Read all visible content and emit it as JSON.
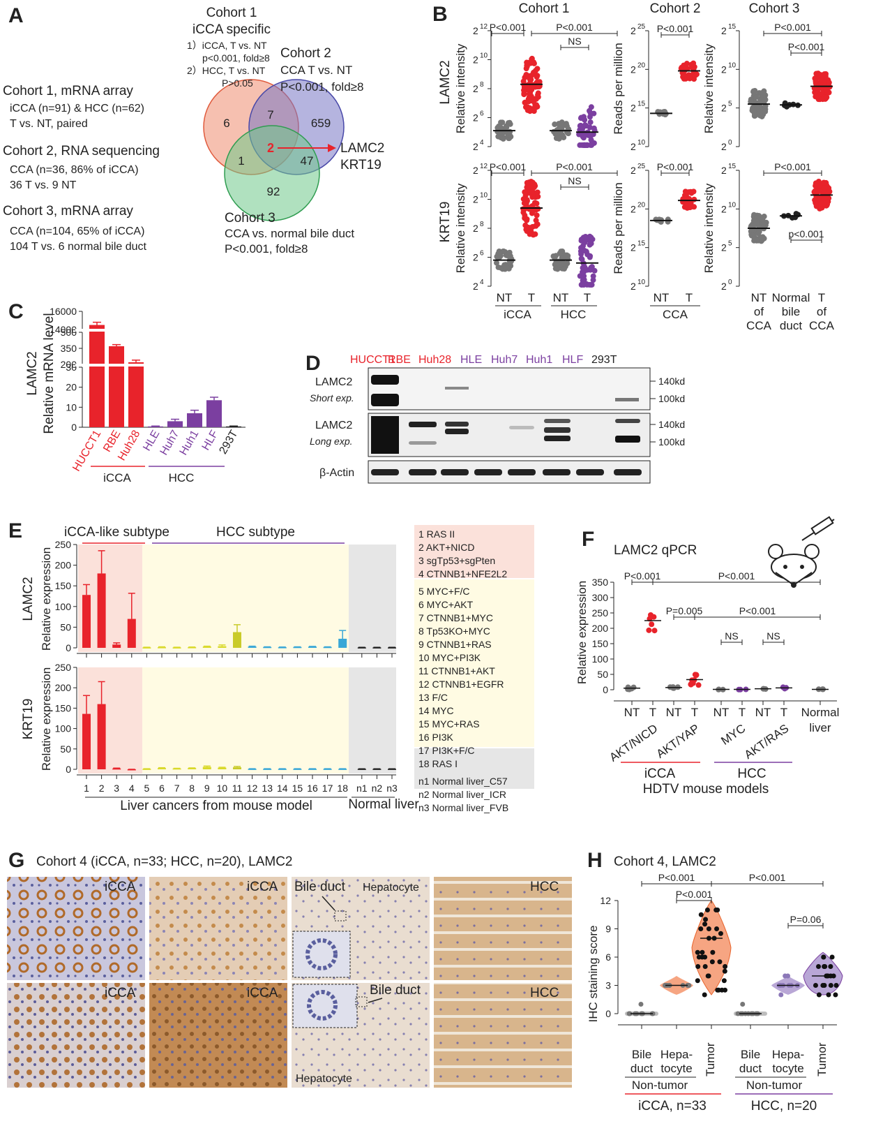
{
  "panels": {
    "A": "A",
    "B": "B",
    "C": "C",
    "D": "D",
    "E": "E",
    "F": "F",
    "G": "G",
    "H": "H"
  },
  "colors": {
    "red": "#e8232b",
    "purple": "#7b3fa0",
    "gray": "#777777",
    "black": "#222222",
    "yellow_bg": "#fffbe3",
    "pink_bg": "#fbe1da",
    "gray_bg": "#e6e6e6",
    "cyan": "#39a7d7",
    "olive": "#c9cb2a"
  },
  "panelA": {
    "c1_title": "Cohort 1, mRNA array",
    "c1_l1": "iCCA (n=91) & HCC (n=62)",
    "c1_l2": "T vs. NT, paired",
    "c2_title": "Cohort 2, RNA sequencing",
    "c2_l1": "CCA (n=36, 86% of iCCA)",
    "c2_l2": "36 T vs. 9 NT",
    "c3_title": "Cohort 3, mRNA array",
    "c3_l1": "CCA (n=104, 65% of iCCA)",
    "c3_l2": "104 T vs. 6 normal bile duct",
    "v1_t1": "Cohort 1",
    "v1_t2": "iCCA specific",
    "v1_l1": "1）iCCA, T vs. NT",
    "v1_l2": "p<0.001, fold≥8",
    "v1_l3": "2）HCC, T vs. NT",
    "v1_l4": "P>0.05",
    "v2_t1": "Cohort 2",
    "v2_l1": "CCA T vs. NT",
    "v2_l2": "P<0.001, fold≥8",
    "v3_t1": "Cohort 3",
    "v3_l1": "CCA vs. normal bile duct",
    "v3_l2": "P<0.001, fold≥8",
    "n_only1": "6",
    "n_12": "7",
    "n_only2": "659",
    "n_all": "2",
    "n_13": "1",
    "n_23": "47",
    "n_only3": "92",
    "genes1": "LAMC2",
    "genes2": "KRT19"
  },
  "panelB": {
    "col1": "Cohort 1",
    "col2": "Cohort 2",
    "col3": "Cohort 3",
    "row1": "LAMC2",
    "row2": "KRT19",
    "ylab_rel": "Relative intensity",
    "ylab_rpm": "Reads per million",
    "base": "2",
    "c1_ticks": [
      "4",
      "6",
      "8",
      "10",
      "12"
    ],
    "c2_ticks": [
      "10",
      "15",
      "20",
      "25"
    ],
    "c3_ticks": [
      "0",
      "5",
      "10",
      "15"
    ],
    "p001": "P<0.001",
    "p001_lower": "p<0.001",
    "ns": "NS",
    "x_nt": "NT",
    "x_t": "T",
    "x_icca": "iCCA",
    "x_hcc": "HCC",
    "x_cca": "CCA",
    "x3_a1": "NT",
    "x3_a2": "of",
    "x3_a3": "CCA",
    "x3_b1": "Normal",
    "x3_b2": "bile",
    "x3_b3": "duct",
    "x3_c1": "T",
    "x3_c2": "of",
    "x3_c3": "CCA"
  },
  "panelC": {
    "ylabel1": "LAMC2",
    "ylabel2": "Relative mRNA level",
    "ticks_top": [
      "14000",
      "16000"
    ],
    "ticks_mid": [
      "200",
      "350",
      "500"
    ],
    "ticks_low": [
      "0",
      "10",
      "20",
      "30"
    ],
    "group1": "iCCA",
    "group2": "HCC"
  },
  "panelD": {
    "lanes": [
      "HUCCT1",
      "RBE",
      "Huh28",
      "HLE",
      "Huh7",
      "Huh1",
      "HLF",
      "293T"
    ],
    "row1_a": "LAMC2",
    "row1_b": "Short exp.",
    "row2_a": "LAMC2",
    "row2_b": "Long exp.",
    "row3": "β-Actin",
    "m140": "140kd",
    "m100": "100kd"
  },
  "panelE": {
    "sub1": "iCCA-like subtype",
    "sub2": "HCC subtype",
    "g1": "LAMC2",
    "g2": "KRT19",
    "ylab": "Relative expression",
    "ticks": [
      "0",
      "50",
      "100",
      "150",
      "200",
      "250"
    ],
    "x_labels": [
      "1",
      "2",
      "3",
      "4",
      "5",
      "6",
      "7",
      "8",
      "9",
      "10",
      "11",
      "12",
      "13",
      "14",
      "15",
      "16",
      "17",
      "18",
      "n1",
      "n2",
      "n3"
    ],
    "x_caption1": "Liver cancers from mouse model",
    "x_caption2": "Normal liver",
    "legend": [
      "1   RAS II",
      "2   AKT+NICD",
      "3   sgTp53+sgPten",
      "4   CTNNB1+NFE2L2",
      "5   MYC+F/C",
      "6   MYC+AKT",
      "7   CTNNB1+MYC",
      "8   Tp53KO+MYC",
      "9   CTNNB1+RAS",
      "10 MYC+PI3K",
      "11 CTNNB1+AKT",
      "12 CTNNB1+EGFR",
      "13 F/C",
      "14 MYC",
      "15 MYC+RAS",
      "16 PI3K",
      "17 PI3K+F/C",
      "18 RAS I",
      "n1 Normal liver_C57",
      "n2 Normal liver_ICR",
      "n3 Normal liver_FVB"
    ]
  },
  "panelF": {
    "title": "LAMC2 qPCR",
    "ylab": "Relative expression",
    "ticks": [
      "0",
      "50",
      "100",
      "150",
      "200",
      "250",
      "300",
      "350"
    ],
    "p1": "P<0.001",
    "p2": "P<0.001",
    "p3": "P=0.005",
    "p4": "P<0.001",
    "ns": "NS",
    "x_nt": "NT",
    "x_t": "T",
    "x_normal1": "Normal",
    "x_normal2": "liver",
    "models": [
      "AKT/NICD",
      "AKT/YAP",
      "MYC",
      "AKT/RAS"
    ],
    "g1": "iCCA",
    "g2": "HCC",
    "caption": "HDTV mouse models"
  },
  "panelG": {
    "title": "Cohort 4 (iCCA, n=33; HCC, n=20), LAMC2",
    "l_icca": "iCCA",
    "l_hcc": "HCC",
    "l_bile": "Bile duct",
    "l_hep": "Hepatocyte"
  },
  "panelH": {
    "title": "Cohort 4, LAMC2",
    "ylab": "IHC staining score",
    "ticks": [
      "0",
      "3",
      "6",
      "9",
      "12"
    ],
    "p1": "P<0.001",
    "p2": "P<0.001",
    "p3": "P<0.001",
    "p4": "P=0.06",
    "x1a": "Bile",
    "x1b": "duct",
    "x2a": "Hepa-",
    "x2b": "tocyte",
    "x3": "Tumor",
    "nontumor": "Non-tumor",
    "g1": "iCCA, n=33",
    "g2": "HCC, n=20"
  },
  "chart_data": [
    {
      "type": "scatter",
      "panel": "B-Cohort1-LAMC2",
      "categories": [
        "iCCA NT",
        "iCCA T",
        "HCC NT",
        "HCC T"
      ],
      "median_log2": [
        5.1,
        8.3,
        5.1,
        5.0
      ],
      "ylim_log2": [
        4,
        12
      ]
    },
    {
      "type": "scatter",
      "panel": "B-Cohort2-LAMC2",
      "categories": [
        "CCA NT",
        "CCA T"
      ],
      "median_log2": [
        14.3,
        19.8
      ],
      "ylim_log2": [
        10,
        25
      ]
    },
    {
      "type": "scatter",
      "panel": "B-Cohort3-LAMC2",
      "categories": [
        "NT of CCA",
        "Normal bile duct",
        "T of CCA"
      ],
      "median_log2": [
        5.5,
        5.4,
        7.8
      ],
      "ylim_log2": [
        0,
        15
      ]
    },
    {
      "type": "scatter",
      "panel": "B-Cohort1-KRT19",
      "categories": [
        "iCCA NT",
        "iCCA T",
        "HCC NT",
        "HCC T"
      ],
      "median_log2": [
        5.8,
        9.4,
        5.8,
        5.6
      ],
      "ylim_log2": [
        4,
        12
      ]
    },
    {
      "type": "scatter",
      "panel": "B-Cohort2-KRT19",
      "categories": [
        "CCA NT",
        "CCA T"
      ],
      "median_log2": [
        18.5,
        21.1
      ],
      "ylim_log2": [
        10,
        25
      ]
    },
    {
      "type": "scatter",
      "panel": "B-Cohort3-KRT19",
      "categories": [
        "NT of CCA",
        "Normal bile duct",
        "T of CCA"
      ],
      "median_log2": [
        7.5,
        9.1,
        11.8
      ],
      "ylim_log2": [
        0,
        15
      ]
    },
    {
      "type": "bar",
      "panel": "C",
      "ylabel": "Relative mRNA level",
      "categories": [
        "HUCCT1",
        "RBE",
        "Huh28",
        "HLE",
        "Huh7",
        "Huh1",
        "HLF",
        "293T"
      ],
      "values": [
        14500,
        370,
        220,
        0.4,
        3,
        7,
        13.5,
        0.4
      ],
      "errors": [
        300,
        15,
        20,
        0.2,
        1,
        1.5,
        1.5,
        0.2
      ]
    },
    {
      "type": "bar",
      "panel": "E-LAMC2",
      "ylabel": "Relative expression",
      "categories": [
        "1",
        "2",
        "3",
        "4",
        "5",
        "6",
        "7",
        "8",
        "9",
        "10",
        "11",
        "12",
        "13",
        "14",
        "15",
        "16",
        "17",
        "18",
        "n1",
        "n2",
        "n3"
      ],
      "values": [
        128,
        180,
        8,
        70,
        1,
        1.5,
        1,
        1.5,
        3,
        4,
        38,
        3,
        2,
        1.5,
        2,
        3,
        2,
        22,
        1,
        1,
        1
      ],
      "errors": [
        25,
        55,
        4,
        62,
        0.5,
        1,
        0.5,
        0.5,
        1,
        3,
        18,
        1,
        0.5,
        0.5,
        0.5,
        0.5,
        0.5,
        20,
        0.3,
        0.3,
        0.3
      ],
      "ylim": [
        0,
        250
      ]
    },
    {
      "type": "bar",
      "panel": "E-KRT19",
      "ylabel": "Relative expression",
      "categories": [
        "1",
        "2",
        "3",
        "4",
        "5",
        "6",
        "7",
        "8",
        "9",
        "10",
        "11",
        "12",
        "13",
        "14",
        "15",
        "16",
        "17",
        "18",
        "n1",
        "n2",
        "n3"
      ],
      "values": [
        136,
        160,
        2,
        0,
        1,
        3,
        2,
        3,
        6,
        4,
        5,
        1,
        1,
        1,
        1,
        1,
        1,
        1,
        1,
        1,
        1
      ],
      "errors": [
        45,
        55,
        1,
        0,
        0.5,
        1,
        0.5,
        0.5,
        2,
        1,
        2,
        0.5,
        0.5,
        0.5,
        0.5,
        0.5,
        0.5,
        0.5,
        0.3,
        0.3,
        0.3
      ],
      "ylim": [
        0,
        250
      ]
    },
    {
      "type": "scatter",
      "panel": "F",
      "ylabel": "Relative expression",
      "categories": [
        "AKT/NICD NT",
        "AKT/NICD T",
        "AKT/YAP NT",
        "AKT/YAP T",
        "MYC NT",
        "MYC T",
        "AKT/RAS NT",
        "AKT/RAS T",
        "Normal liver"
      ],
      "means": [
        5,
        225,
        7,
        33,
        1,
        1,
        3,
        6,
        1
      ],
      "ylim": [
        0,
        350
      ]
    },
    {
      "type": "scatter",
      "panel": "H",
      "ylabel": "IHC staining score",
      "categories": [
        "iCCA Bile duct",
        "iCCA Hepatocyte",
        "iCCA Tumor",
        "HCC Bile duct",
        "HCC Hepatocyte",
        "HCC Tumor"
      ],
      "medians": [
        0,
        3,
        8,
        0,
        3,
        4
      ],
      "ylim": [
        0,
        12
      ]
    }
  ]
}
